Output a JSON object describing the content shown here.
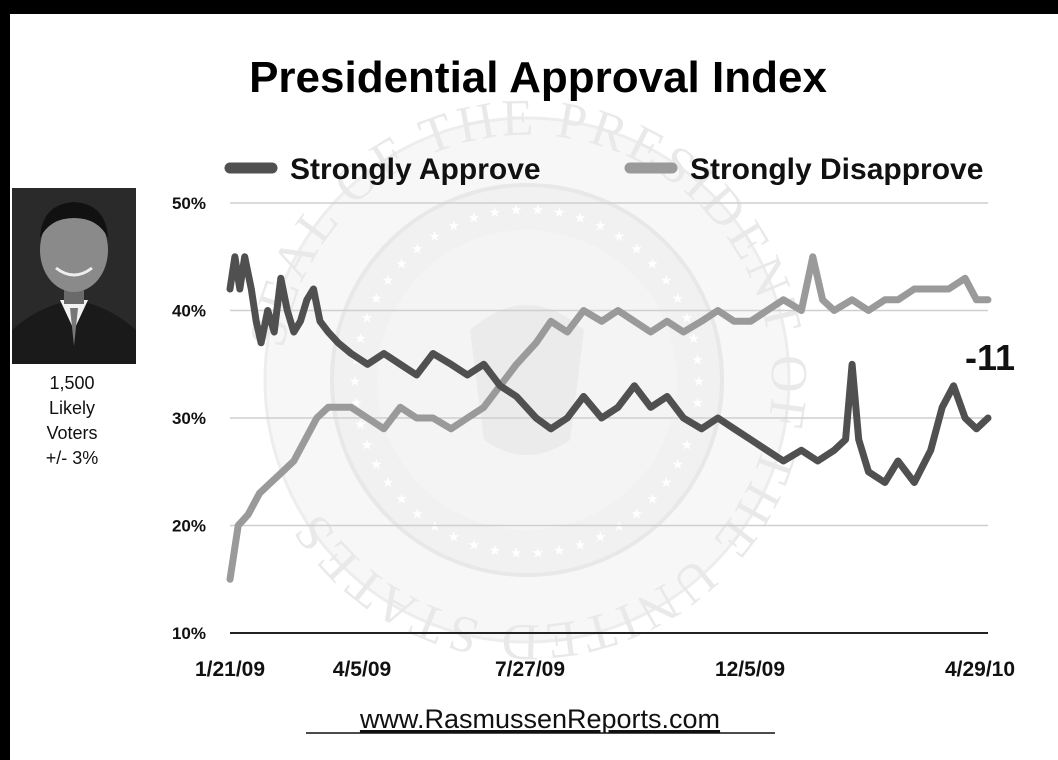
{
  "chart_data": {
    "type": "line",
    "title": "Presidential Approval Index",
    "y_unit": "%",
    "ylim": [
      10,
      50
    ],
    "yticks": [
      "10%",
      "20%",
      "30%",
      "40%",
      "50%"
    ],
    "xlim": [
      "2009-01-21",
      "2010-04-29"
    ],
    "xtick_labels": [
      "1/21/09",
      "4/5/09",
      "7/27/09",
      "12/5/09",
      "4/29/10"
    ],
    "grid": true,
    "legend_position": "top",
    "annotation": "-11",
    "series": [
      {
        "name": "Strongly Approve",
        "color": "#505050",
        "points": [
          [
            "2009-01-21",
            42
          ],
          [
            "2009-01-24",
            45
          ],
          [
            "2009-01-27",
            42
          ],
          [
            "2009-01-30",
            45
          ],
          [
            "2009-02-03",
            42
          ],
          [
            "2009-02-06",
            39
          ],
          [
            "2009-02-09",
            37
          ],
          [
            "2009-02-13",
            40
          ],
          [
            "2009-02-17",
            38
          ],
          [
            "2009-02-21",
            43
          ],
          [
            "2009-02-25",
            40
          ],
          [
            "2009-03-01",
            38
          ],
          [
            "2009-03-05",
            39
          ],
          [
            "2009-03-09",
            41
          ],
          [
            "2009-03-13",
            42
          ],
          [
            "2009-03-17",
            39
          ],
          [
            "2009-03-22",
            38
          ],
          [
            "2009-03-28",
            37
          ],
          [
            "2009-04-05",
            36
          ],
          [
            "2009-04-15",
            35
          ],
          [
            "2009-04-25",
            36
          ],
          [
            "2009-05-05",
            35
          ],
          [
            "2009-05-15",
            34
          ],
          [
            "2009-05-25",
            36
          ],
          [
            "2009-06-05",
            35
          ],
          [
            "2009-06-15",
            34
          ],
          [
            "2009-06-25",
            35
          ],
          [
            "2009-07-05",
            33
          ],
          [
            "2009-07-15",
            32
          ],
          [
            "2009-07-27",
            30
          ],
          [
            "2009-08-05",
            29
          ],
          [
            "2009-08-15",
            30
          ],
          [
            "2009-08-25",
            32
          ],
          [
            "2009-09-05",
            30
          ],
          [
            "2009-09-15",
            31
          ],
          [
            "2009-09-25",
            33
          ],
          [
            "2009-10-05",
            31
          ],
          [
            "2009-10-15",
            32
          ],
          [
            "2009-10-25",
            30
          ],
          [
            "2009-11-05",
            29
          ],
          [
            "2009-11-15",
            30
          ],
          [
            "2009-11-25",
            29
          ],
          [
            "2009-12-05",
            28
          ],
          [
            "2009-12-15",
            27
          ],
          [
            "2009-12-25",
            26
          ],
          [
            "2010-01-05",
            27
          ],
          [
            "2010-01-15",
            26
          ],
          [
            "2010-01-25",
            27
          ],
          [
            "2010-02-01",
            28
          ],
          [
            "2010-02-05",
            35
          ],
          [
            "2010-02-09",
            28
          ],
          [
            "2010-02-15",
            25
          ],
          [
            "2010-02-25",
            24
          ],
          [
            "2010-03-05",
            26
          ],
          [
            "2010-03-15",
            24
          ],
          [
            "2010-03-25",
            27
          ],
          [
            "2010-04-01",
            31
          ],
          [
            "2010-04-08",
            33
          ],
          [
            "2010-04-15",
            30
          ],
          [
            "2010-04-22",
            29
          ],
          [
            "2010-04-29",
            30
          ]
        ]
      },
      {
        "name": "Strongly Disapprove",
        "color": "#9a9a9a",
        "points": [
          [
            "2009-01-21",
            15
          ],
          [
            "2009-01-23",
            17
          ],
          [
            "2009-01-26",
            20
          ],
          [
            "2009-02-01",
            21
          ],
          [
            "2009-02-08",
            23
          ],
          [
            "2009-02-15",
            24
          ],
          [
            "2009-02-22",
            25
          ],
          [
            "2009-03-01",
            26
          ],
          [
            "2009-03-08",
            28
          ],
          [
            "2009-03-15",
            30
          ],
          [
            "2009-03-22",
            31
          ],
          [
            "2009-04-05",
            31
          ],
          [
            "2009-04-15",
            30
          ],
          [
            "2009-04-25",
            29
          ],
          [
            "2009-05-05",
            31
          ],
          [
            "2009-05-15",
            30
          ],
          [
            "2009-05-25",
            30
          ],
          [
            "2009-06-05",
            29
          ],
          [
            "2009-06-15",
            30
          ],
          [
            "2009-06-25",
            31
          ],
          [
            "2009-07-05",
            33
          ],
          [
            "2009-07-15",
            35
          ],
          [
            "2009-07-27",
            37
          ],
          [
            "2009-08-05",
            39
          ],
          [
            "2009-08-15",
            38
          ],
          [
            "2009-08-25",
            40
          ],
          [
            "2009-09-05",
            39
          ],
          [
            "2009-09-15",
            40
          ],
          [
            "2009-09-25",
            39
          ],
          [
            "2009-10-05",
            38
          ],
          [
            "2009-10-15",
            39
          ],
          [
            "2009-10-25",
            38
          ],
          [
            "2009-11-05",
            39
          ],
          [
            "2009-11-15",
            40
          ],
          [
            "2009-11-25",
            39
          ],
          [
            "2009-12-05",
            39
          ],
          [
            "2009-12-15",
            40
          ],
          [
            "2009-12-25",
            41
          ],
          [
            "2010-01-05",
            40
          ],
          [
            "2010-01-12",
            45
          ],
          [
            "2010-01-18",
            41
          ],
          [
            "2010-01-25",
            40
          ],
          [
            "2010-02-05",
            41
          ],
          [
            "2010-02-15",
            40
          ],
          [
            "2010-02-25",
            41
          ],
          [
            "2010-03-05",
            41
          ],
          [
            "2010-03-15",
            42
          ],
          [
            "2010-03-25",
            42
          ],
          [
            "2010-04-05",
            42
          ],
          [
            "2010-04-15",
            43
          ],
          [
            "2010-04-22",
            41
          ],
          [
            "2010-04-29",
            41
          ]
        ]
      }
    ]
  },
  "sidebar": {
    "sample_size": "1,500",
    "line2": "Likely",
    "line3": "Voters",
    "margin": "+/- 3%"
  },
  "footer": {
    "source": "www.RasmussenReports.com"
  },
  "seal": {
    "text": "SEAL OF THE PRESIDENT OF THE UNITED STATES"
  }
}
